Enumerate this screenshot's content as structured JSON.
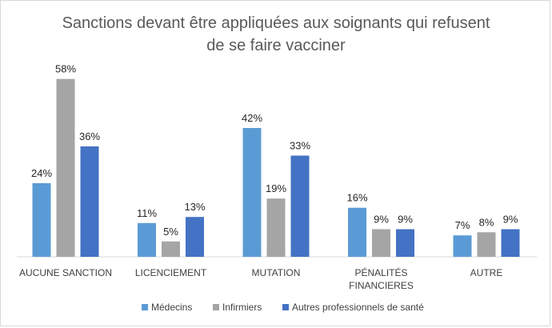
{
  "chart_data": {
    "type": "bar",
    "title": [
      "Sanctions devant être appliquées aux soignants qui refusent",
      "de se faire vacciner"
    ],
    "categories": [
      [
        "AUCUNE SANCTION"
      ],
      [
        "LICENCIEMENT"
      ],
      [
        "MUTATION"
      ],
      [
        "PÉNALITÉS",
        "FINANCIERES"
      ],
      [
        "AUTRE"
      ]
    ],
    "series": [
      {
        "name": "Médecins",
        "color": "#5B9BD5",
        "values": [
          24,
          11,
          42,
          16,
          7
        ],
        "labels": [
          "24%",
          "11%",
          "42%",
          "16%",
          "7%"
        ]
      },
      {
        "name": "Infirmiers",
        "color": "#A5A5A5",
        "values": [
          58,
          5,
          19,
          9,
          8
        ],
        "labels": [
          "58%",
          "5%",
          "19%",
          "9%",
          "8%"
        ]
      },
      {
        "name": "Autres professionnels de santé",
        "color": "#4472C4",
        "values": [
          36,
          13,
          33,
          9,
          9
        ],
        "labels": [
          "36%",
          "13%",
          "33%",
          "9%",
          "9%"
        ]
      }
    ],
    "ylim": [
      0,
      60
    ],
    "grid": false,
    "legend_position": "bottom"
  }
}
